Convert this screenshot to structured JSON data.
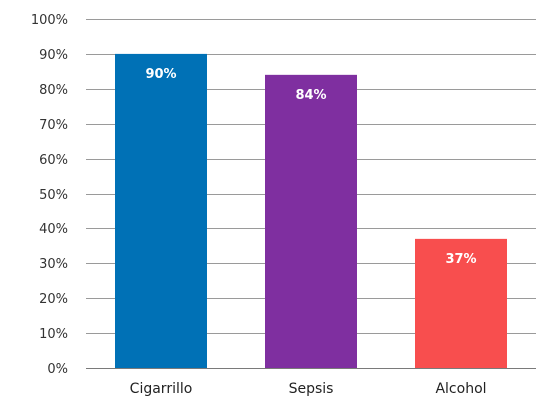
{
  "chart_data": {
    "type": "bar",
    "categories": [
      "Cigarrillo",
      "Sepsis",
      "Alcohol"
    ],
    "values": [
      90,
      84,
      37
    ],
    "data_labels": [
      "90%",
      "84%",
      "37%"
    ],
    "colors": [
      "#0071B6",
      "#7F2FA0",
      "#F84E4E"
    ],
    "title": "",
    "xlabel": "",
    "ylabel": "",
    "ylim": [
      0,
      100
    ],
    "y_ticks": [
      0,
      10,
      20,
      30,
      40,
      50,
      60,
      70,
      80,
      90,
      100
    ],
    "y_tick_labels": [
      "0%",
      "10%",
      "20%",
      "30%",
      "40%",
      "50%",
      "60%",
      "70%",
      "80%",
      "90%",
      "100%"
    ],
    "grid": true,
    "legend": "none"
  }
}
